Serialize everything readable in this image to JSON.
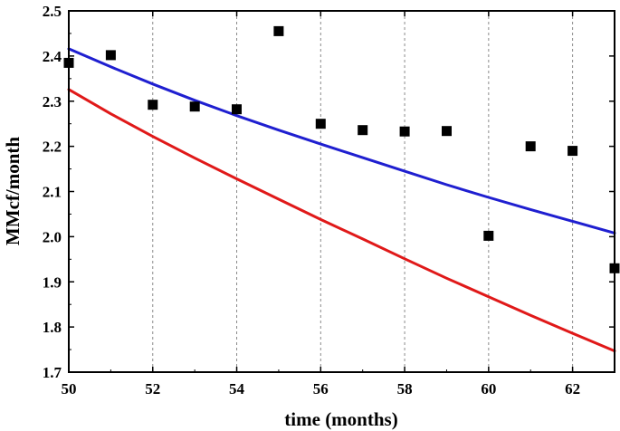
{
  "chart_data": {
    "type": "scatter",
    "title": "",
    "xlabel": "time (months)",
    "ylabel": "MMcf/month",
    "xlim": [
      50,
      63
    ],
    "ylim": [
      1.7,
      2.5
    ],
    "xticks": [
      50,
      52,
      54,
      56,
      58,
      60,
      62
    ],
    "xtick_labels": [
      "50",
      "52",
      "54",
      "56",
      "58",
      "60",
      "62"
    ],
    "yticks": [
      1.7,
      1.8,
      1.9,
      2.0,
      2.1,
      2.2,
      2.3,
      2.4,
      2.5
    ],
    "ytick_labels": [
      "1.7",
      "1.8",
      "1.9",
      "2.0",
      "2.1",
      "2.2",
      "2.3",
      "2.4",
      "2.5"
    ],
    "grid": "vertical dashed lines at x ticks",
    "legend": "none",
    "series": [
      {
        "name": "data",
        "kind": "scatter",
        "marker": "square",
        "color": "#000000",
        "x": [
          50,
          51,
          52,
          53,
          54,
          55,
          56,
          57,
          58,
          59,
          60,
          61,
          62,
          63
        ],
        "y": [
          2.385,
          2.402,
          2.292,
          2.288,
          2.282,
          2.455,
          2.25,
          2.236,
          2.233,
          2.234,
          2.002,
          2.2,
          2.19,
          1.93
        ]
      },
      {
        "name": "blue curve",
        "kind": "line",
        "color": "#1f1fd0",
        "x": [
          50,
          51,
          52,
          53,
          54,
          55,
          56,
          57,
          58,
          59,
          60,
          61,
          62,
          63
        ],
        "y": [
          2.416,
          2.376,
          2.338,
          2.302,
          2.268,
          2.236,
          2.205,
          2.175,
          2.145,
          2.115,
          2.087,
          2.06,
          2.034,
          2.008
        ]
      },
      {
        "name": "red curve",
        "kind": "line",
        "color": "#e01919",
        "x": [
          50,
          51,
          52,
          53,
          54,
          55,
          56,
          57,
          58,
          59,
          60,
          61,
          62,
          63
        ],
        "y": [
          2.326,
          2.272,
          2.222,
          2.174,
          2.128,
          2.083,
          2.038,
          1.995,
          1.951,
          1.908,
          1.867,
          1.826,
          1.786,
          1.747
        ]
      }
    ]
  }
}
